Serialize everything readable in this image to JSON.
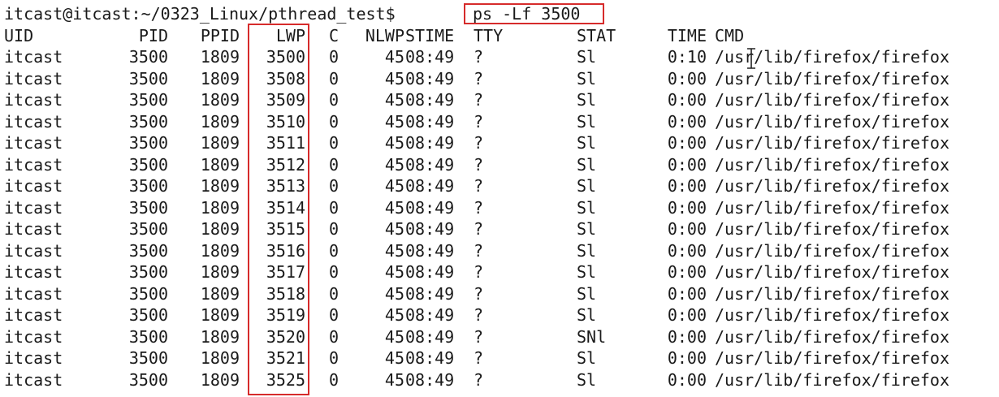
{
  "terminal": {
    "prompt": "itcast@itcast:~/0323_Linux/pthread_test$",
    "command": "ps -Lf 3500",
    "highlight_color": "#d62b2b",
    "headers": [
      "UID",
      "PID",
      "PPID",
      "LWP",
      "C",
      "NLWP",
      "STIME",
      "TTY",
      "STAT",
      "TIME",
      "CMD"
    ],
    "rows": [
      [
        "itcast",
        "3500",
        "1809",
        "3500",
        "0",
        "45",
        "08:49",
        "?",
        "Sl",
        "0:10",
        "/usr/lib/firefox/firefox"
      ],
      [
        "itcast",
        "3500",
        "1809",
        "3508",
        "0",
        "45",
        "08:49",
        "?",
        "Sl",
        "0:00",
        "/usr/lib/firefox/firefox"
      ],
      [
        "itcast",
        "3500",
        "1809",
        "3509",
        "0",
        "45",
        "08:49",
        "?",
        "Sl",
        "0:00",
        "/usr/lib/firefox/firefox"
      ],
      [
        "itcast",
        "3500",
        "1809",
        "3510",
        "0",
        "45",
        "08:49",
        "?",
        "Sl",
        "0:00",
        "/usr/lib/firefox/firefox"
      ],
      [
        "itcast",
        "3500",
        "1809",
        "3511",
        "0",
        "45",
        "08:49",
        "?",
        "Sl",
        "0:00",
        "/usr/lib/firefox/firefox"
      ],
      [
        "itcast",
        "3500",
        "1809",
        "3512",
        "0",
        "45",
        "08:49",
        "?",
        "Sl",
        "0:00",
        "/usr/lib/firefox/firefox"
      ],
      [
        "itcast",
        "3500",
        "1809",
        "3513",
        "0",
        "45",
        "08:49",
        "?",
        "Sl",
        "0:00",
        "/usr/lib/firefox/firefox"
      ],
      [
        "itcast",
        "3500",
        "1809",
        "3514",
        "0",
        "45",
        "08:49",
        "?",
        "Sl",
        "0:00",
        "/usr/lib/firefox/firefox"
      ],
      [
        "itcast",
        "3500",
        "1809",
        "3515",
        "0",
        "45",
        "08:49",
        "?",
        "Sl",
        "0:00",
        "/usr/lib/firefox/firefox"
      ],
      [
        "itcast",
        "3500",
        "1809",
        "3516",
        "0",
        "45",
        "08:49",
        "?",
        "Sl",
        "0:00",
        "/usr/lib/firefox/firefox"
      ],
      [
        "itcast",
        "3500",
        "1809",
        "3517",
        "0",
        "45",
        "08:49",
        "?",
        "Sl",
        "0:00",
        "/usr/lib/firefox/firefox"
      ],
      [
        "itcast",
        "3500",
        "1809",
        "3518",
        "0",
        "45",
        "08:49",
        "?",
        "Sl",
        "0:00",
        "/usr/lib/firefox/firefox"
      ],
      [
        "itcast",
        "3500",
        "1809",
        "3519",
        "0",
        "45",
        "08:49",
        "?",
        "Sl",
        "0:00",
        "/usr/lib/firefox/firefox"
      ],
      [
        "itcast",
        "3500",
        "1809",
        "3520",
        "0",
        "45",
        "08:49",
        "?",
        "SNl",
        "0:00",
        "/usr/lib/firefox/firefox"
      ],
      [
        "itcast",
        "3500",
        "1809",
        "3521",
        "0",
        "45",
        "08:49",
        "?",
        "Sl",
        "0:00",
        "/usr/lib/firefox/firefox"
      ],
      [
        "itcast",
        "3500",
        "1809",
        "3525",
        "0",
        "45",
        "08:49",
        "?",
        "Sl",
        "0:00",
        "/usr/lib/firefox/firefox"
      ]
    ]
  }
}
